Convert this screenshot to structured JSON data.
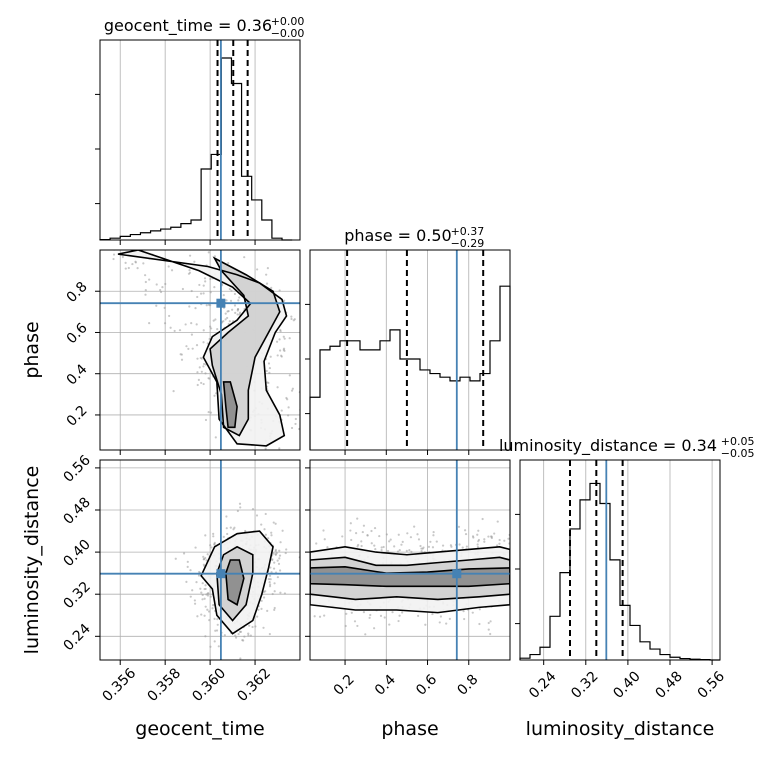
{
  "chart_data": {
    "type": "corner",
    "parameters": [
      "geocent_time",
      "phase",
      "luminosity_distance"
    ],
    "titles": [
      {
        "param": "geocent_time",
        "label": "geocent_time",
        "median": "0.36",
        "plus": "+0.00",
        "minus": "−0.00"
      },
      {
        "param": "phase",
        "label": "phase",
        "median": "0.50",
        "plus": "+0.37",
        "minus": "−0.29"
      },
      {
        "param": "luminosity_distance",
        "label": "luminosity_distance",
        "median": "0.34",
        "plus": "+0.05",
        "minus": "−0.05"
      }
    ],
    "axis_labels": {
      "x": [
        "geocent_time",
        "phase",
        "luminosity_distance"
      ],
      "y": [
        "phase",
        "luminosity_distance"
      ]
    },
    "ranges": {
      "geocent_time": [
        0.3551,
        0.364
      ],
      "phase": [
        0.03,
        1.0
      ],
      "luminosity_distance": [
        0.195,
        0.575
      ]
    },
    "ticks": {
      "geocent_time": {
        "values": [
          0.356,
          0.358,
          0.36,
          0.362
        ],
        "labels": [
          "0.356",
          "0.358",
          "0.360",
          "0.362"
        ]
      },
      "phase": {
        "values": [
          0.2,
          0.4,
          0.6,
          0.8
        ],
        "labels": [
          "0.2",
          "0.4",
          "0.6",
          "0.8"
        ]
      },
      "luminosity_distance": {
        "values": [
          0.24,
          0.32,
          0.4,
          0.48,
          0.56
        ],
        "labels": [
          "0.24",
          "0.32",
          "0.40",
          "0.48",
          "0.56"
        ]
      }
    },
    "truths": {
      "geocent_time": 0.36048,
      "phase": 0.742,
      "luminosity_distance": 0.359
    },
    "quantiles": {
      "geocent_time": [
        0.36033,
        0.36103,
        0.36167
      ],
      "phase": [
        0.21,
        0.5,
        0.87
      ],
      "luminosity_distance": [
        0.29,
        0.34,
        0.39
      ]
    },
    "truth_color": "#4682b4",
    "grid": true,
    "histograms": {
      "geocent_time": {
        "edges": [
          0.3551,
          0.35555,
          0.356,
          0.35645,
          0.3569,
          0.35735,
          0.3578,
          0.35825,
          0.3587,
          0.35915,
          0.3596,
          0.36005,
          0.3605,
          0.36095,
          0.3614,
          0.36185,
          0.3623,
          0.36275,
          0.3632,
          0.36365
        ],
        "counts": [
          0.002,
          0.01,
          0.02,
          0.03,
          0.04,
          0.05,
          0.06,
          0.07,
          0.09,
          0.11,
          0.39,
          0.47,
          1.0,
          0.86,
          0.35,
          0.22,
          0.11,
          0.01,
          0.0
        ]
      },
      "phase": {
        "edges": [
          0.03,
          0.0785,
          0.127,
          0.1755,
          0.224,
          0.2725,
          0.321,
          0.3695,
          0.418,
          0.4665,
          0.515,
          0.5635,
          0.612,
          0.6605,
          0.709,
          0.7575,
          0.806,
          0.8545,
          0.903,
          0.9515,
          1.0
        ],
        "counts": [
          0.29,
          0.55,
          0.57,
          0.6,
          0.6,
          0.55,
          0.55,
          0.6,
          0.66,
          0.5,
          0.5,
          0.44,
          0.42,
          0.4,
          0.38,
          0.4,
          0.38,
          0.42,
          0.6,
          0.9
        ]
      },
      "luminosity_distance": {
        "edges": [
          0.195,
          0.214,
          0.233,
          0.252,
          0.271,
          0.29,
          0.309,
          0.328,
          0.347,
          0.366,
          0.385,
          0.404,
          0.423,
          0.442,
          0.461,
          0.48,
          0.499,
          0.518,
          0.537,
          0.556,
          0.575
        ],
        "counts": [
          0.01,
          0.03,
          0.07,
          0.24,
          0.48,
          0.72,
          0.88,
          0.97,
          0.86,
          0.55,
          0.3,
          0.19,
          0.1,
          0.06,
          0.03,
          0.015,
          0.008,
          0.004,
          0.002,
          0.0
        ]
      }
    },
    "pairs": [
      {
        "x": "geocent_time",
        "y": "phase",
        "contours": [
          [
            [
              0.3559,
              0.98
            ],
            [
              0.3599,
              0.92
            ],
            [
              0.3612,
              0.88
            ],
            [
              0.3622,
              0.84
            ],
            [
              0.3632,
              0.76
            ],
            [
              0.3634,
              0.68
            ],
            [
              0.3629,
              0.6
            ],
            [
              0.3624,
              0.46
            ],
            [
              0.3625,
              0.32
            ],
            [
              0.3631,
              0.2
            ],
            [
              0.3633,
              0.1
            ],
            [
              0.3625,
              0.05
            ],
            [
              0.3612,
              0.06
            ],
            [
              0.3604,
              0.18
            ],
            [
              0.3603,
              0.36
            ],
            [
              0.3597,
              0.48
            ],
            [
              0.3601,
              0.58
            ],
            [
              0.3612,
              0.66
            ],
            [
              0.3618,
              0.74
            ],
            [
              0.361,
              0.82
            ],
            [
              0.3595,
              0.9
            ],
            [
              0.3568,
              1.0
            ]
          ],
          [
            [
              0.3602,
              0.96
            ],
            [
              0.3616,
              0.88
            ],
            [
              0.3628,
              0.8
            ],
            [
              0.3631,
              0.7
            ],
            [
              0.3626,
              0.6
            ],
            [
              0.362,
              0.48
            ],
            [
              0.3617,
              0.32
            ],
            [
              0.3617,
              0.18
            ],
            [
              0.3613,
              0.1
            ],
            [
              0.3606,
              0.14
            ],
            [
              0.3605,
              0.3
            ],
            [
              0.3601,
              0.44
            ],
            [
              0.36,
              0.52
            ],
            [
              0.3608,
              0.6
            ],
            [
              0.3617,
              0.68
            ],
            [
              0.3615,
              0.78
            ],
            [
              0.3605,
              0.9
            ]
          ],
          [
            [
              0.3609,
              0.36
            ],
            [
              0.3612,
              0.24
            ],
            [
              0.3611,
              0.14
            ],
            [
              0.3608,
              0.14
            ],
            [
              0.3607,
              0.24
            ],
            [
              0.3606,
              0.36
            ]
          ]
        ]
      },
      {
        "x": "geocent_time",
        "y": "luminosity_distance",
        "contours": [
          [
            [
              0.3596,
              0.355
            ],
            [
              0.3602,
              0.41
            ],
            [
              0.3612,
              0.435
            ],
            [
              0.3622,
              0.44
            ],
            [
              0.3628,
              0.41
            ],
            [
              0.3626,
              0.37
            ],
            [
              0.3623,
              0.32
            ],
            [
              0.3619,
              0.27
            ],
            [
              0.361,
              0.245
            ],
            [
              0.3603,
              0.28
            ],
            [
              0.3601,
              0.33
            ]
          ],
          [
            [
              0.3603,
              0.36
            ],
            [
              0.3606,
              0.395
            ],
            [
              0.3612,
              0.41
            ],
            [
              0.3619,
              0.395
            ],
            [
              0.3619,
              0.36
            ],
            [
              0.3616,
              0.3
            ],
            [
              0.361,
              0.27
            ],
            [
              0.3604,
              0.3
            ]
          ],
          [
            [
              0.3607,
              0.36
            ],
            [
              0.3609,
              0.385
            ],
            [
              0.3613,
              0.385
            ],
            [
              0.3615,
              0.35
            ],
            [
              0.3612,
              0.3
            ],
            [
              0.3608,
              0.31
            ]
          ]
        ]
      },
      {
        "x": "phase",
        "y": "luminosity_distance",
        "contours": [
          [
            [
              0.03,
              0.4
            ],
            [
              0.2,
              0.41
            ],
            [
              0.35,
              0.4
            ],
            [
              0.5,
              0.395
            ],
            [
              0.65,
              0.4
            ],
            [
              0.8,
              0.405
            ],
            [
              0.95,
              0.41
            ],
            [
              1.0,
              0.405
            ],
            [
              1.0,
              0.3
            ],
            [
              0.85,
              0.295
            ],
            [
              0.65,
              0.285
            ],
            [
              0.45,
              0.29
            ],
            [
              0.25,
              0.29
            ],
            [
              0.03,
              0.3
            ]
          ],
          [
            [
              0.03,
              0.385
            ],
            [
              0.2,
              0.39
            ],
            [
              0.35,
              0.375
            ],
            [
              0.5,
              0.375
            ],
            [
              0.65,
              0.38
            ],
            [
              0.8,
              0.385
            ],
            [
              0.95,
              0.39
            ],
            [
              1.0,
              0.385
            ],
            [
              1.0,
              0.32
            ],
            [
              0.85,
              0.315
            ],
            [
              0.65,
              0.31
            ],
            [
              0.45,
              0.315
            ],
            [
              0.25,
              0.31
            ],
            [
              0.03,
              0.32
            ]
          ],
          [
            [
              0.03,
              0.37
            ],
            [
              0.2,
              0.372
            ],
            [
              0.4,
              0.36
            ],
            [
              0.6,
              0.362
            ],
            [
              0.8,
              0.368
            ],
            [
              1.0,
              0.37
            ],
            [
              1.0,
              0.34
            ],
            [
              0.8,
              0.335
            ],
            [
              0.6,
              0.335
            ],
            [
              0.4,
              0.335
            ],
            [
              0.2,
              0.338
            ],
            [
              0.03,
              0.34
            ]
          ]
        ]
      }
    ]
  }
}
